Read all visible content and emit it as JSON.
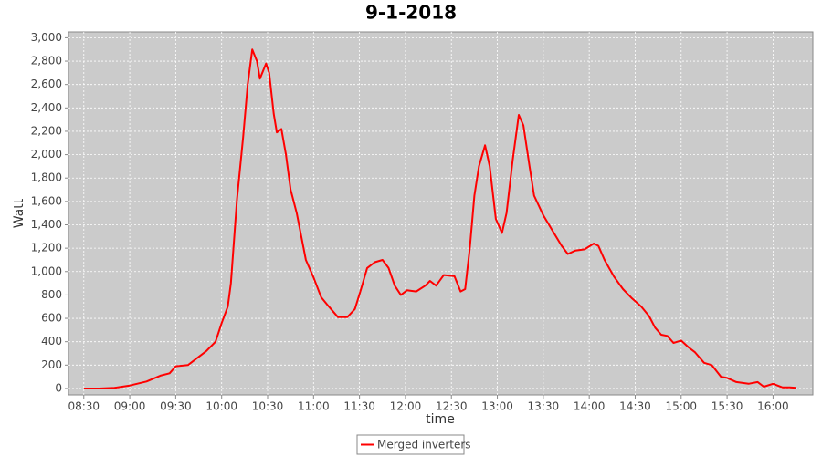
{
  "chart_data": {
    "type": "line",
    "title": "9-1-2018",
    "x_label": "time",
    "y_label": "Watt",
    "x": [
      "08:30",
      "08:40",
      "08:50",
      "09:00",
      "09:11",
      "09:20",
      "09:26",
      "09:30",
      "09:38",
      "09:44",
      "09:50",
      "09:56",
      "10:00",
      "10:04",
      "10:06",
      "10:10",
      "10:14",
      "10:17",
      "10:20",
      "10:23",
      "10:25",
      "10:29",
      "10:31",
      "10:34",
      "10:36",
      "10:39",
      "10:42",
      "10:45",
      "10:49",
      "10:52",
      "10:55",
      "11:00",
      "11:05",
      "11:10",
      "11:16",
      "11:22",
      "11:27",
      "11:31",
      "11:35",
      "11:40",
      "11:45",
      "11:49",
      "11:53",
      "11:57",
      "12:01",
      "12:07",
      "12:13",
      "12:16",
      "12:20",
      "12:25",
      "12:32",
      "12:36",
      "12:39",
      "12:42",
      "12:45",
      "12:48",
      "12:52",
      "12:55",
      "12:59",
      "13:03",
      "13:06",
      "13:10",
      "13:14",
      "13:17",
      "13:21",
      "13:24",
      "13:30",
      "13:36",
      "13:42",
      "13:46",
      "13:51",
      "13:57",
      "14:03",
      "14:06",
      "14:10",
      "14:16",
      "14:22",
      "14:28",
      "14:34",
      "14:39",
      "14:43",
      "14:47",
      "14:51",
      "14:55",
      "15:00",
      "15:05",
      "15:09",
      "15:15",
      "15:20",
      "15:26",
      "15:30",
      "15:36",
      "15:44",
      "15:50",
      "15:54",
      "16:00",
      "16:06",
      "16:11",
      "16:15"
    ],
    "series": [
      {
        "name": "Merged inverters",
        "color": "#ff0000",
        "values": [
          0,
          0,
          5,
          25,
          60,
          110,
          130,
          190,
          200,
          260,
          320,
          400,
          560,
          700,
          900,
          1620,
          2150,
          2600,
          2900,
          2800,
          2650,
          2780,
          2700,
          2350,
          2190,
          2220,
          2000,
          1700,
          1500,
          1300,
          1100,
          950,
          780,
          700,
          610,
          610,
          680,
          850,
          1030,
          1080,
          1100,
          1030,
          880,
          800,
          840,
          830,
          880,
          920,
          880,
          970,
          960,
          830,
          850,
          1200,
          1650,
          1900,
          2080,
          1900,
          1450,
          1330,
          1500,
          1950,
          2340,
          2250,
          1900,
          1650,
          1480,
          1350,
          1220,
          1150,
          1180,
          1190,
          1240,
          1220,
          1100,
          960,
          850,
          770,
          700,
          620,
          520,
          460,
          450,
          390,
          410,
          350,
          310,
          220,
          200,
          100,
          90,
          55,
          40,
          55,
          15,
          40,
          10,
          10,
          5
        ]
      }
    ],
    "xlim": [
      "08:20",
      "16:26"
    ],
    "xticks": [
      "08:30",
      "09:00",
      "09:30",
      "10:00",
      "10:30",
      "11:00",
      "11:30",
      "12:00",
      "12:30",
      "13:00",
      "13:30",
      "14:00",
      "14:30",
      "15:00",
      "15:30",
      "16:00"
    ],
    "ylim": [
      -55,
      3050
    ],
    "yticks": [
      0,
      200,
      400,
      600,
      800,
      {
        "value": 1000,
        "label": "1,000"
      },
      {
        "value": 1200,
        "label": "1,200"
      },
      {
        "value": 1400,
        "label": "1,400"
      },
      {
        "value": 1600,
        "label": "1,600"
      },
      {
        "value": 1800,
        "label": "1,800"
      },
      {
        "value": 2000,
        "label": "2,000"
      },
      {
        "value": 2200,
        "label": "2,200"
      },
      {
        "value": 2400,
        "label": "2,400"
      },
      {
        "value": 2600,
        "label": "2,600"
      },
      {
        "value": 2800,
        "label": "2,800"
      },
      {
        "value": 3000,
        "label": "3,000"
      }
    ],
    "grid": true,
    "legend": "bottom"
  }
}
